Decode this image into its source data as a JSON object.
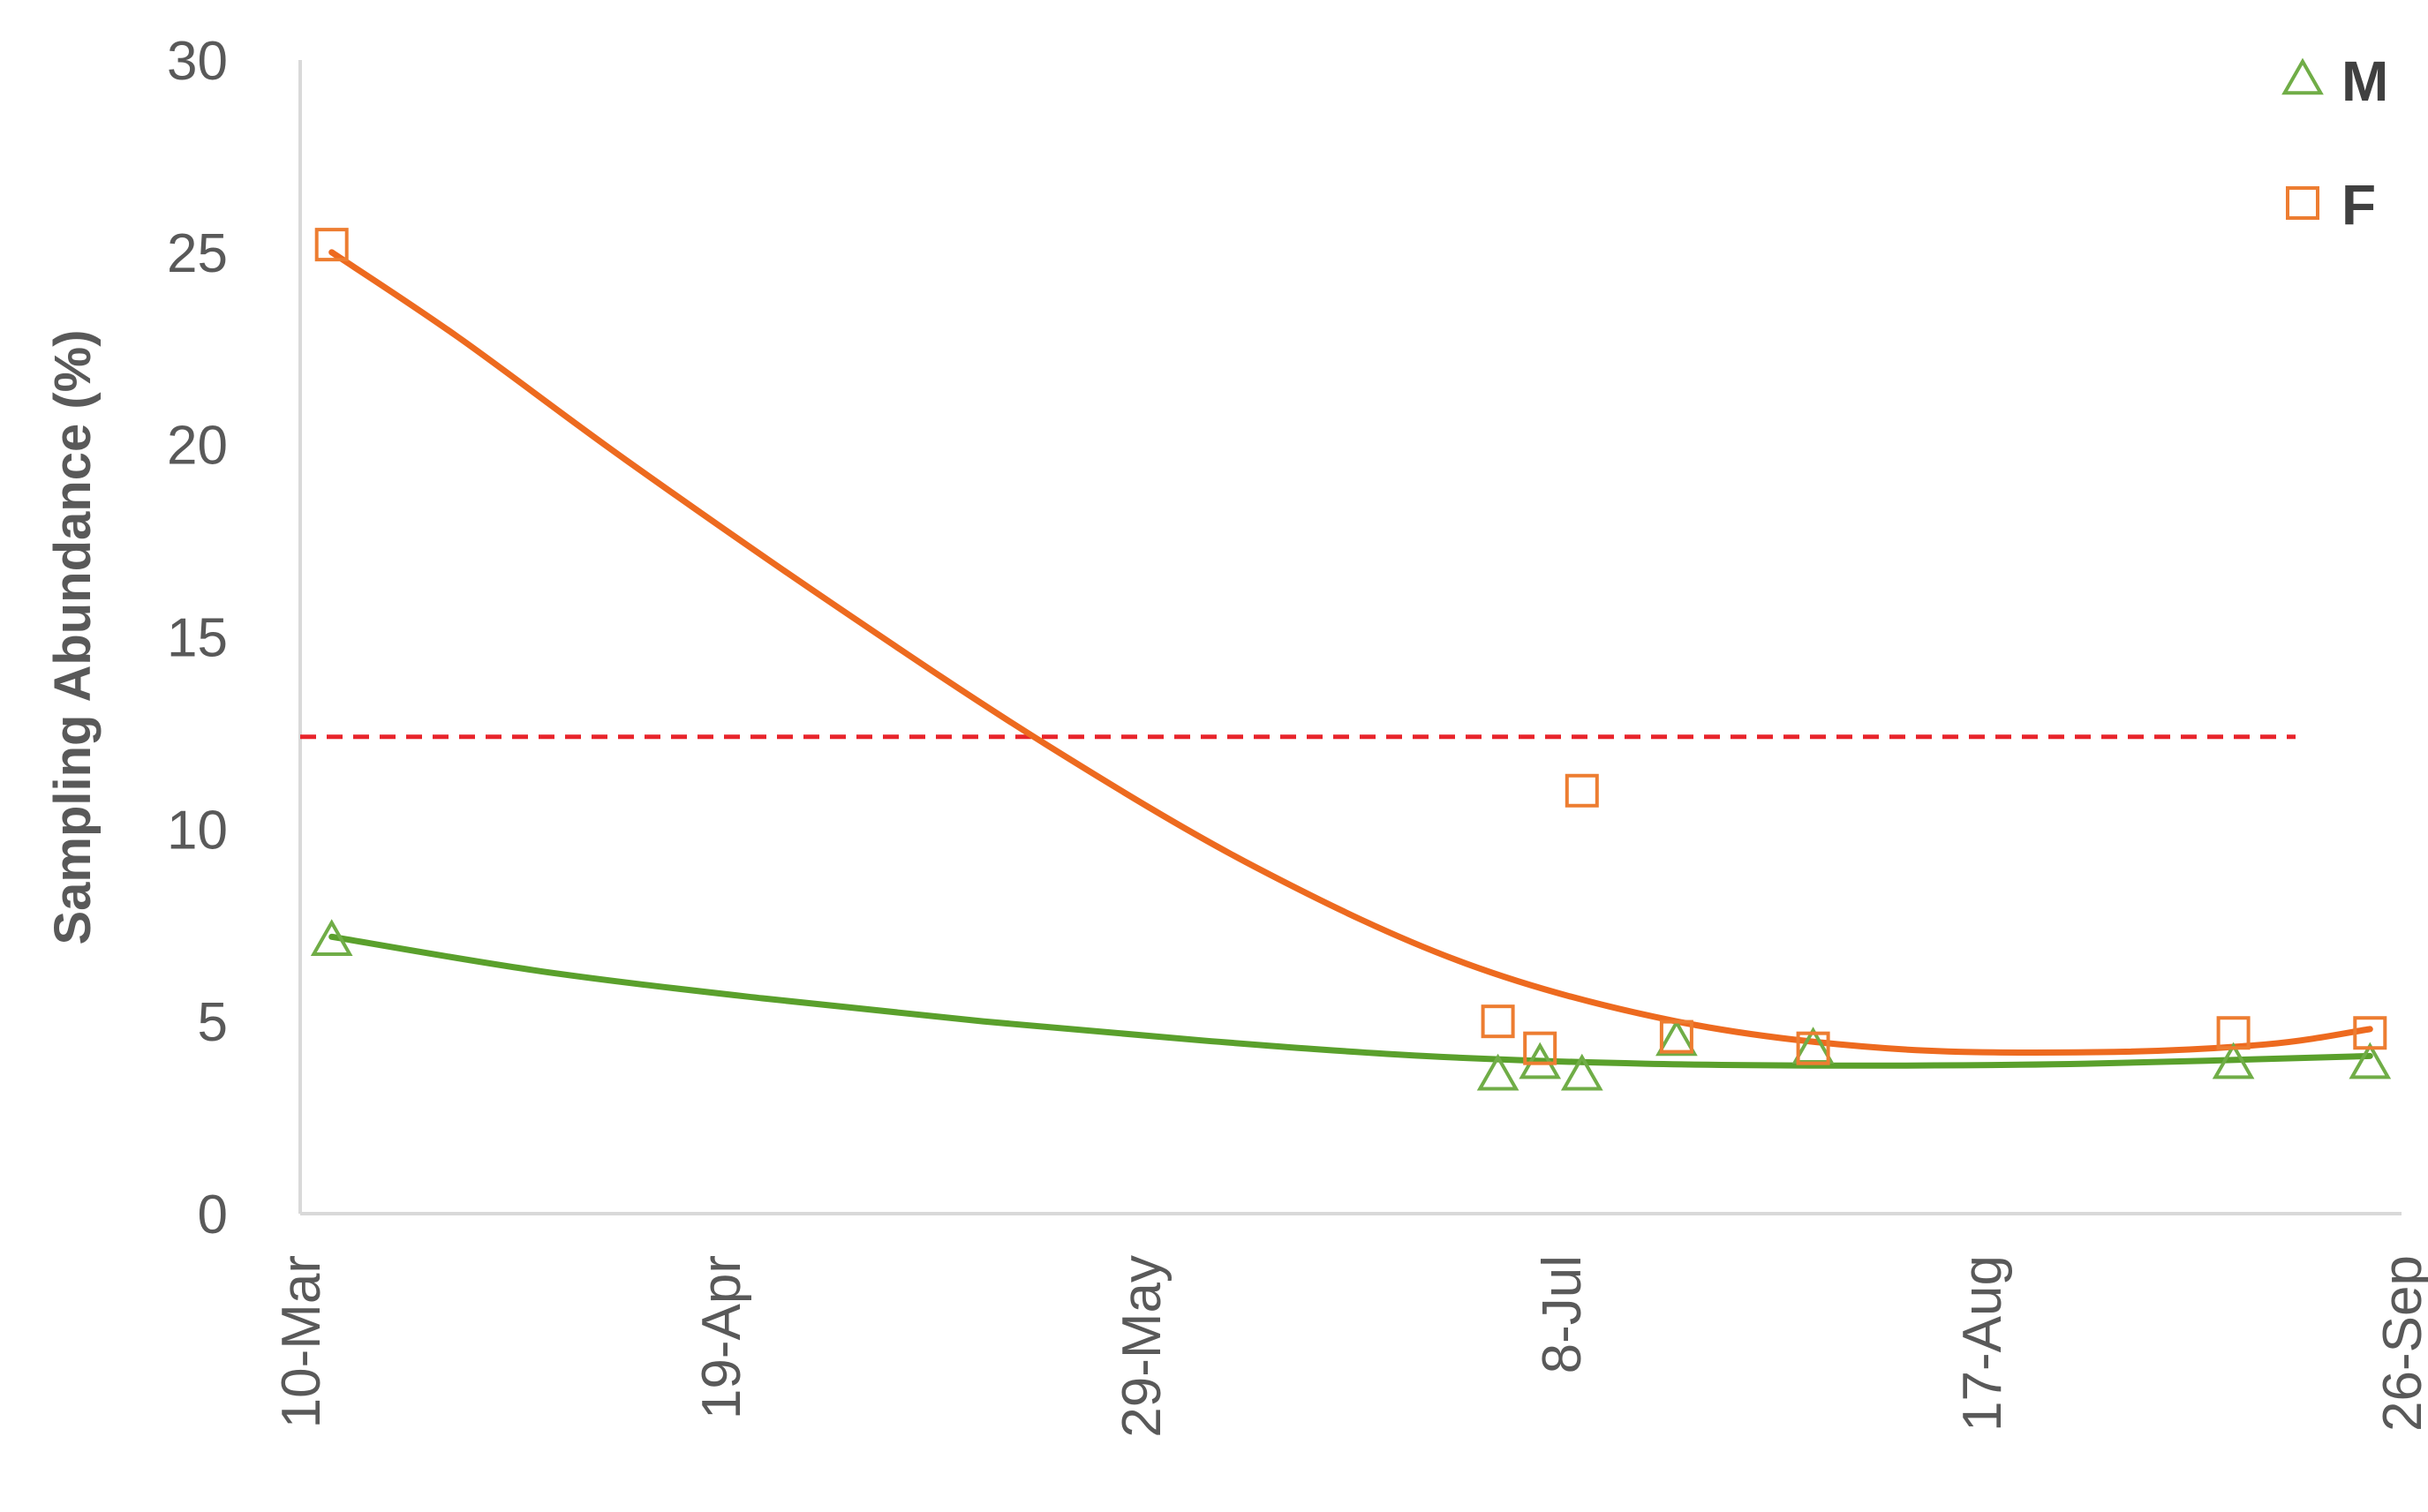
{
  "chart_data": {
    "type": "scatter",
    "title": "",
    "xlabel": "",
    "ylabel": "Sampling Abundance (%)",
    "ylim": [
      0,
      30
    ],
    "yticks": [
      "0",
      "5",
      "10",
      "15",
      "20",
      "25",
      "30"
    ],
    "xlim": [
      "10-Mar",
      "26-Sep"
    ],
    "xticks": [
      "10-Mar",
      "19-Apr",
      "29-May",
      "8-Jul",
      "17-Aug",
      "26-Sep"
    ],
    "legend_position": "top-right",
    "grid": false,
    "threshold_line": {
      "y": 12.4,
      "style": "dashed",
      "color": "#e8242b"
    },
    "series": [
      {
        "name": "M",
        "marker": "triangle-open",
        "color": "#70ad47",
        "trend_color": "#5aa02c",
        "points": [
          {
            "x": "13-Mar",
            "y": 7.1
          },
          {
            "x": "2-Jul",
            "y": 3.6
          },
          {
            "x": "6-Jul",
            "y": 3.9
          },
          {
            "x": "10-Jul",
            "y": 3.6
          },
          {
            "x": "19-Jul",
            "y": 4.5
          },
          {
            "x": "1-Aug",
            "y": 4.3
          },
          {
            "x": "10-Sep",
            "y": 3.9
          },
          {
            "x": "23-Sep",
            "y": 3.9
          }
        ],
        "trend": [
          {
            "x": "13-Mar",
            "y": 7.2
          },
          {
            "x": "2-Apr",
            "y": 6.3
          },
          {
            "x": "23-Apr",
            "y": 5.6
          },
          {
            "x": "14-May",
            "y": 5.0
          },
          {
            "x": "4-Jun",
            "y": 4.5
          },
          {
            "x": "25-Jun",
            "y": 4.1
          },
          {
            "x": "16-Jul",
            "y": 3.9
          },
          {
            "x": "6-Aug",
            "y": 3.85
          },
          {
            "x": "27-Aug",
            "y": 3.9
          },
          {
            "x": "23-Sep",
            "y": 4.1
          }
        ]
      },
      {
        "name": "F",
        "marker": "square-open",
        "color": "#ed7d31",
        "trend_color": "#ed6a1f",
        "points": [
          {
            "x": "13-Mar",
            "y": 25.2
          },
          {
            "x": "2-Jul",
            "y": 5.0
          },
          {
            "x": "6-Jul",
            "y": 4.3
          },
          {
            "x": "10-Jul",
            "y": 11.0
          },
          {
            "x": "19-Jul",
            "y": 4.6
          },
          {
            "x": "1-Aug",
            "y": 4.3
          },
          {
            "x": "10-Sep",
            "y": 4.7
          },
          {
            "x": "23-Sep",
            "y": 4.7
          }
        ],
        "trend": [
          {
            "x": "13-Mar",
            "y": 25.0
          },
          {
            "x": "25-Mar",
            "y": 22.8
          },
          {
            "x": "10-Apr",
            "y": 19.6
          },
          {
            "x": "30-Apr",
            "y": 15.8
          },
          {
            "x": "20-May",
            "y": 12.2
          },
          {
            "x": "9-Jun",
            "y": 9.0
          },
          {
            "x": "29-Jun",
            "y": 6.5
          },
          {
            "x": "19-Jul",
            "y": 5.0
          },
          {
            "x": "8-Aug",
            "y": 4.3
          },
          {
            "x": "28-Aug",
            "y": 4.2
          },
          {
            "x": "13-Sep",
            "y": 4.4
          },
          {
            "x": "23-Sep",
            "y": 4.8
          }
        ]
      }
    ]
  }
}
